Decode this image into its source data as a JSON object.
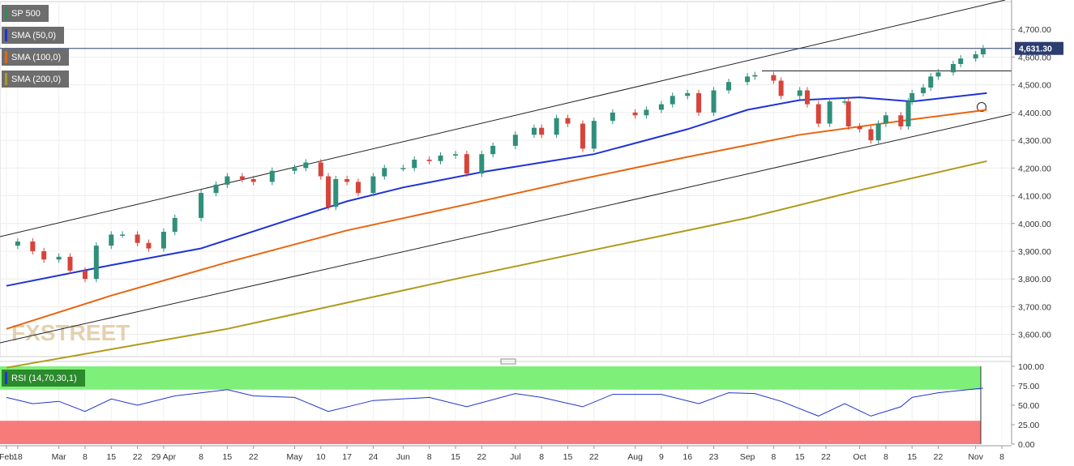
{
  "chart_data": {
    "type": "candlestick",
    "symbol": "SP 500",
    "last_price": "4,631.30",
    "indicators": [
      {
        "name": "SMA (50,0)",
        "color": "#1f33d6"
      },
      {
        "name": "SMA (100,0)",
        "color": "#e8650f"
      },
      {
        "name": "SMA (200,0)",
        "color": "#b09a1a"
      }
    ],
    "rsi": {
      "name": "RSI (14,70,30,1)",
      "upper": 70,
      "lower": 30,
      "ticks": [
        "100.00",
        "75.00",
        "50.00",
        "25.00",
        "0.00"
      ]
    },
    "y_ticks": [
      "3,600.00",
      "3,700.00",
      "3,800.00",
      "3,900.00",
      "4,000.00",
      "4,100.00",
      "4,200.00",
      "4,300.00",
      "4,400.00",
      "4,500.00",
      "4,600.00",
      "4,700.00"
    ],
    "ylim": [
      3520,
      4800
    ],
    "x_ticks": [
      {
        "label": "Feb",
        "date": "2021-02-15"
      },
      {
        "label": "18",
        "date": "2021-02-18"
      },
      {
        "label": "Mar",
        "date": "2021-03-01"
      },
      {
        "label": "8",
        "date": "2021-03-08"
      },
      {
        "label": "15",
        "date": "2021-03-15"
      },
      {
        "label": "22",
        "date": "2021-03-22"
      },
      {
        "label": "29 Apr",
        "date": "2021-03-29"
      },
      {
        "label": "8",
        "date": "2021-04-08"
      },
      {
        "label": "15",
        "date": "2021-04-15"
      },
      {
        "label": "22",
        "date": "2021-04-22"
      },
      {
        "label": "May",
        "date": "2021-05-03"
      },
      {
        "label": "10",
        "date": "2021-05-10"
      },
      {
        "label": "17",
        "date": "2021-05-17"
      },
      {
        "label": "24",
        "date": "2021-05-24"
      },
      {
        "label": "Jun",
        "date": "2021-06-01"
      },
      {
        "label": "8",
        "date": "2021-06-08"
      },
      {
        "label": "15",
        "date": "2021-06-15"
      },
      {
        "label": "22",
        "date": "2021-06-22"
      },
      {
        "label": "Jul",
        "date": "2021-07-01"
      },
      {
        "label": "8",
        "date": "2021-07-08"
      },
      {
        "label": "15",
        "date": "2021-07-15"
      },
      {
        "label": "22",
        "date": "2021-07-22"
      },
      {
        "label": "Aug",
        "date": "2021-08-02"
      },
      {
        "label": "9",
        "date": "2021-08-09"
      },
      {
        "label": "16",
        "date": "2021-08-16"
      },
      {
        "label": "23",
        "date": "2021-08-23"
      },
      {
        "label": "Sep",
        "date": "2021-09-01"
      },
      {
        "label": "8",
        "date": "2021-09-08"
      },
      {
        "label": "15",
        "date": "2021-09-15"
      },
      {
        "label": "22",
        "date": "2021-09-22"
      },
      {
        "label": "Oct",
        "date": "2021-10-01"
      },
      {
        "label": "8",
        "date": "2021-10-08"
      },
      {
        "label": "15",
        "date": "2021-10-15"
      },
      {
        "label": "22",
        "date": "2021-10-22"
      },
      {
        "label": "Nov",
        "date": "2021-11-01"
      },
      {
        "label": "8",
        "date": "2021-11-08"
      }
    ],
    "watermark": "FXSTREET",
    "close_series": [
      {
        "date": "2021-02-15",
        "close": 3920
      },
      {
        "date": "2021-02-18",
        "close": 3935
      },
      {
        "date": "2021-02-22",
        "close": 3900
      },
      {
        "date": "2021-02-25",
        "close": 3870
      },
      {
        "date": "2021-03-01",
        "close": 3880
      },
      {
        "date": "2021-03-04",
        "close": 3830
      },
      {
        "date": "2021-03-08",
        "close": 3800
      },
      {
        "date": "2021-03-11",
        "close": 3920
      },
      {
        "date": "2021-03-15",
        "close": 3960
      },
      {
        "date": "2021-03-18",
        "close": 3960
      },
      {
        "date": "2021-03-22",
        "close": 3930
      },
      {
        "date": "2021-03-25",
        "close": 3910
      },
      {
        "date": "2021-03-29",
        "close": 3970
      },
      {
        "date": "2021-04-01",
        "close": 4020
      },
      {
        "date": "2021-04-08",
        "close": 4110
      },
      {
        "date": "2021-04-12",
        "close": 4140
      },
      {
        "date": "2021-04-15",
        "close": 4170
      },
      {
        "date": "2021-04-19",
        "close": 4160
      },
      {
        "date": "2021-04-22",
        "close": 4150
      },
      {
        "date": "2021-04-27",
        "close": 4190
      },
      {
        "date": "2021-05-03",
        "close": 4200
      },
      {
        "date": "2021-05-06",
        "close": 4220
      },
      {
        "date": "2021-05-10",
        "close": 4170
      },
      {
        "date": "2021-05-12",
        "close": 4060
      },
      {
        "date": "2021-05-14",
        "close": 4160
      },
      {
        "date": "2021-05-17",
        "close": 4150
      },
      {
        "date": "2021-05-20",
        "close": 4110
      },
      {
        "date": "2021-05-24",
        "close": 4170
      },
      {
        "date": "2021-05-27",
        "close": 4200
      },
      {
        "date": "2021-06-01",
        "close": 4200
      },
      {
        "date": "2021-06-04",
        "close": 4230
      },
      {
        "date": "2021-06-08",
        "close": 4225
      },
      {
        "date": "2021-06-11",
        "close": 4245
      },
      {
        "date": "2021-06-15",
        "close": 4250
      },
      {
        "date": "2021-06-18",
        "close": 4180
      },
      {
        "date": "2021-06-22",
        "close": 4250
      },
      {
        "date": "2021-06-25",
        "close": 4280
      },
      {
        "date": "2021-07-01",
        "close": 4320
      },
      {
        "date": "2021-07-06",
        "close": 4345
      },
      {
        "date": "2021-07-08",
        "close": 4320
      },
      {
        "date": "2021-07-12",
        "close": 4380
      },
      {
        "date": "2021-07-15",
        "close": 4360
      },
      {
        "date": "2021-07-19",
        "close": 4270
      },
      {
        "date": "2021-07-22",
        "close": 4370
      },
      {
        "date": "2021-07-27",
        "close": 4400
      },
      {
        "date": "2021-08-02",
        "close": 4390
      },
      {
        "date": "2021-08-05",
        "close": 4410
      },
      {
        "date": "2021-08-09",
        "close": 4430
      },
      {
        "date": "2021-08-12",
        "close": 4460
      },
      {
        "date": "2021-08-16",
        "close": 4470
      },
      {
        "date": "2021-08-19",
        "close": 4400
      },
      {
        "date": "2021-08-23",
        "close": 4480
      },
      {
        "date": "2021-08-27",
        "close": 4510
      },
      {
        "date": "2021-09-01",
        "close": 4530
      },
      {
        "date": "2021-09-03",
        "close": 4535
      },
      {
        "date": "2021-09-08",
        "close": 4515
      },
      {
        "date": "2021-09-10",
        "close": 4460
      },
      {
        "date": "2021-09-15",
        "close": 4480
      },
      {
        "date": "2021-09-17",
        "close": 4430
      },
      {
        "date": "2021-09-20",
        "close": 4360
      },
      {
        "date": "2021-09-23",
        "close": 4440
      },
      {
        "date": "2021-09-27",
        "close": 4440
      },
      {
        "date": "2021-09-28",
        "close": 4350
      },
      {
        "date": "2021-10-01",
        "close": 4340
      },
      {
        "date": "2021-10-04",
        "close": 4300
      },
      {
        "date": "2021-10-06",
        "close": 4360
      },
      {
        "date": "2021-10-08",
        "close": 4390
      },
      {
        "date": "2021-10-12",
        "close": 4350
      },
      {
        "date": "2021-10-14",
        "close": 4440
      },
      {
        "date": "2021-10-15",
        "close": 4470
      },
      {
        "date": "2021-10-18",
        "close": 4490
      },
      {
        "date": "2021-10-20",
        "close": 4530
      },
      {
        "date": "2021-10-22",
        "close": 4545
      },
      {
        "date": "2021-10-26",
        "close": 4575
      },
      {
        "date": "2021-10-28",
        "close": 4595
      },
      {
        "date": "2021-11-01",
        "close": 4610
      },
      {
        "date": "2021-11-03",
        "close": 4631.3
      }
    ],
    "sma50": [
      {
        "date": "2021-02-15",
        "v": 3775
      },
      {
        "date": "2021-03-15",
        "v": 3850
      },
      {
        "date": "2021-04-08",
        "v": 3910
      },
      {
        "date": "2021-05-03",
        "v": 4020
      },
      {
        "date": "2021-05-17",
        "v": 4080
      },
      {
        "date": "2021-06-01",
        "v": 4130
      },
      {
        "date": "2021-06-22",
        "v": 4185
      },
      {
        "date": "2021-07-08",
        "v": 4220
      },
      {
        "date": "2021-07-22",
        "v": 4250
      },
      {
        "date": "2021-08-16",
        "v": 4340
      },
      {
        "date": "2021-09-01",
        "v": 4410
      },
      {
        "date": "2021-09-15",
        "v": 4445
      },
      {
        "date": "2021-10-01",
        "v": 4455
      },
      {
        "date": "2021-10-15",
        "v": 4440
      },
      {
        "date": "2021-11-04",
        "v": 4470
      }
    ],
    "sma100": [
      {
        "date": "2021-02-15",
        "v": 3620
      },
      {
        "date": "2021-03-15",
        "v": 3740
      },
      {
        "date": "2021-04-15",
        "v": 3860
      },
      {
        "date": "2021-05-17",
        "v": 3975
      },
      {
        "date": "2021-06-15",
        "v": 4060
      },
      {
        "date": "2021-07-15",
        "v": 4150
      },
      {
        "date": "2021-08-16",
        "v": 4240
      },
      {
        "date": "2021-09-15",
        "v": 4320
      },
      {
        "date": "2021-10-15",
        "v": 4375
      },
      {
        "date": "2021-11-04",
        "v": 4410
      }
    ],
    "sma200": [
      {
        "date": "2021-02-15",
        "v": 3480
      },
      {
        "date": "2021-04-15",
        "v": 3620
      },
      {
        "date": "2021-06-15",
        "v": 3800
      },
      {
        "date": "2021-07-22",
        "v": 3905
      },
      {
        "date": "2021-09-01",
        "v": 4020
      },
      {
        "date": "2021-10-01",
        "v": 4120
      },
      {
        "date": "2021-11-04",
        "v": 4225
      }
    ],
    "rsi_series": [
      {
        "date": "2021-02-15",
        "v": 60
      },
      {
        "date": "2021-02-22",
        "v": 52
      },
      {
        "date": "2021-03-01",
        "v": 55
      },
      {
        "date": "2021-03-08",
        "v": 42
      },
      {
        "date": "2021-03-15",
        "v": 58
      },
      {
        "date": "2021-03-22",
        "v": 50
      },
      {
        "date": "2021-04-01",
        "v": 62
      },
      {
        "date": "2021-04-15",
        "v": 70
      },
      {
        "date": "2021-04-22",
        "v": 62
      },
      {
        "date": "2021-05-03",
        "v": 60
      },
      {
        "date": "2021-05-12",
        "v": 42
      },
      {
        "date": "2021-05-24",
        "v": 56
      },
      {
        "date": "2021-06-08",
        "v": 60
      },
      {
        "date": "2021-06-18",
        "v": 48
      },
      {
        "date": "2021-07-01",
        "v": 65
      },
      {
        "date": "2021-07-08",
        "v": 60
      },
      {
        "date": "2021-07-19",
        "v": 48
      },
      {
        "date": "2021-07-27",
        "v": 64
      },
      {
        "date": "2021-08-09",
        "v": 64
      },
      {
        "date": "2021-08-19",
        "v": 52
      },
      {
        "date": "2021-08-27",
        "v": 66
      },
      {
        "date": "2021-09-03",
        "v": 65
      },
      {
        "date": "2021-09-10",
        "v": 55
      },
      {
        "date": "2021-09-20",
        "v": 36
      },
      {
        "date": "2021-09-27",
        "v": 52
      },
      {
        "date": "2021-10-04",
        "v": 36
      },
      {
        "date": "2021-10-12",
        "v": 48
      },
      {
        "date": "2021-10-15",
        "v": 60
      },
      {
        "date": "2021-10-22",
        "v": 66
      },
      {
        "date": "2021-11-03",
        "v": 72
      }
    ]
  }
}
